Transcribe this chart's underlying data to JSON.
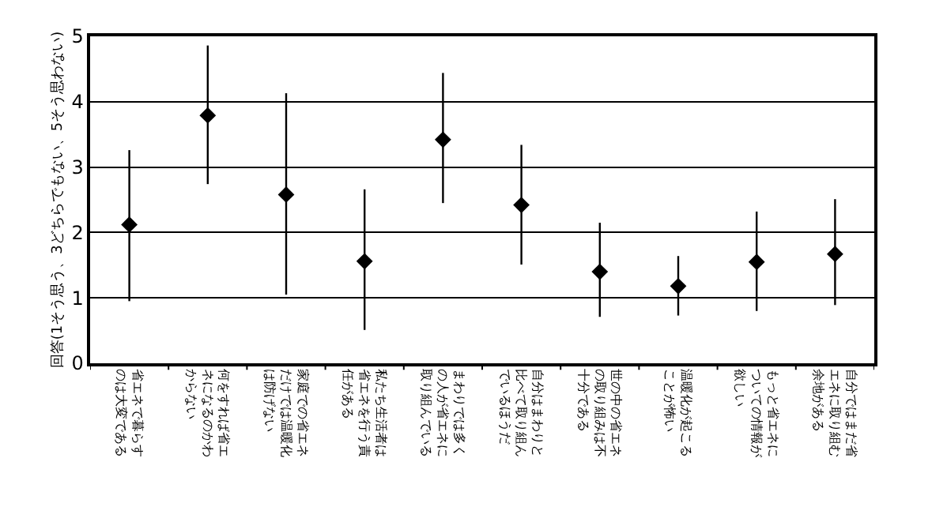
{
  "chart_data": {
    "type": "scatter",
    "ylabel": "回答(1そう思う、3どちらでもない、5そう思わない)",
    "categories": [
      "省エネで暮らすのは大変である",
      "何をすれば省エネになるのかわからない",
      "家庭での省エネだけでは温暖化は防げない",
      "私たち生活者は省エネを行う責任がある",
      "まわりでは多くの人が省エネに取り組んでいる",
      "自分はまわりと比べて取り組んでいるほうだ",
      "世の中の省エネの取り組みは不十分である",
      "温暖化が起こることが怖い",
      "もっと省エネについての情報が欲しい",
      "自分ではまだ省エネに取り組む余地がある"
    ],
    "values": [
      2.12,
      3.79,
      2.58,
      1.56,
      3.42,
      2.42,
      1.4,
      1.18,
      1.55,
      1.67
    ],
    "errors": [
      [
        0.95,
        3.26
      ],
      [
        2.74,
        4.86
      ],
      [
        1.05,
        4.13
      ],
      [
        0.51,
        2.66
      ],
      [
        2.45,
        4.44
      ],
      [
        1.51,
        3.34
      ],
      [
        0.71,
        2.15
      ],
      [
        0.73,
        1.64
      ],
      [
        0.8,
        2.32
      ],
      [
        0.89,
        2.51
      ]
    ],
    "color": "#000000",
    "marker": "diamond",
    "ylim": [
      0,
      5
    ],
    "yticks": [
      0,
      1,
      2,
      3,
      4,
      5
    ],
    "grid": "y"
  }
}
